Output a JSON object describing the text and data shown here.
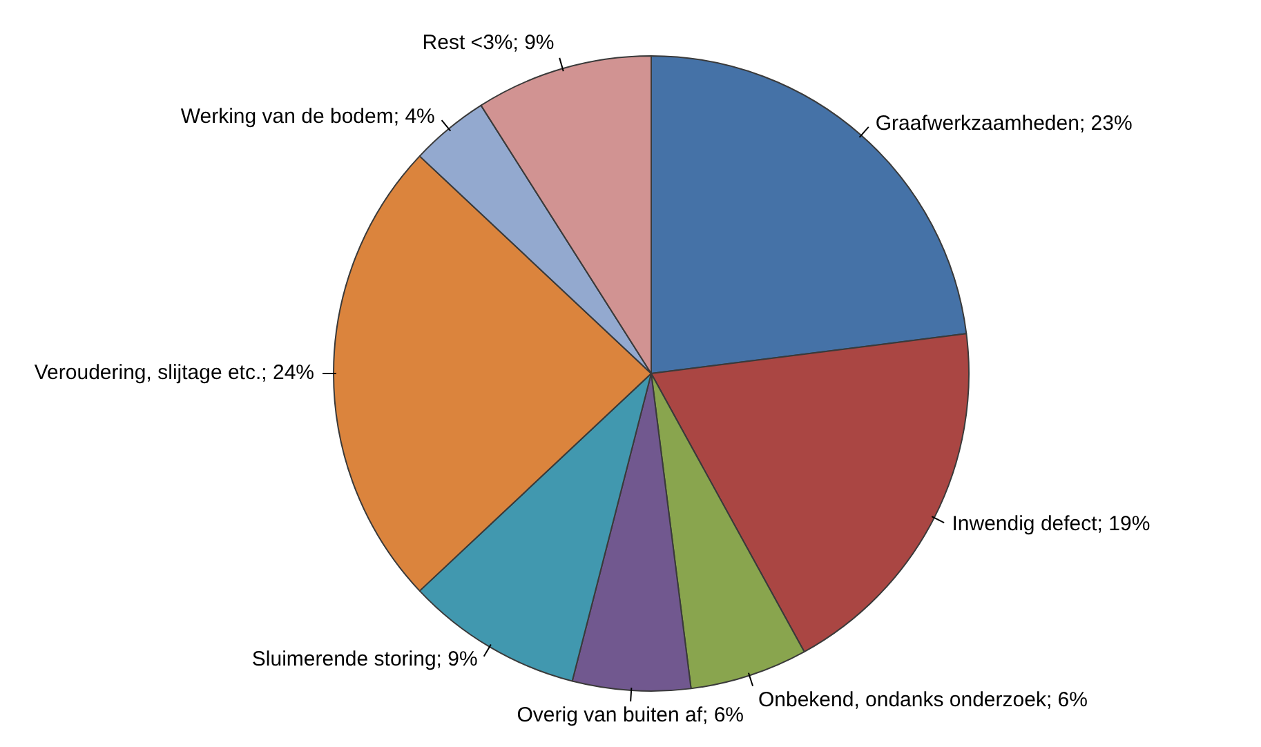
{
  "chart_data": {
    "type": "pie",
    "categories": [
      "Graafwerkzaamheden",
      "Inwendig defect",
      "Onbekend, ondanks onderzoek",
      "Overig van buiten af",
      "Sluimerende storing",
      "Veroudering, slijtage etc.",
      "Werking van de bodem",
      "Rest <3%"
    ],
    "values": [
      23,
      19,
      6,
      6,
      9,
      24,
      4,
      9
    ],
    "value_labels": [
      "23%",
      "19%",
      "6%",
      "6%",
      "9%",
      "24%",
      "4%",
      "9%"
    ],
    "colors": [
      "#4572a7",
      "#aa4643",
      "#89a54e",
      "#71588f",
      "#4198af",
      "#db843d",
      "#93a9cf",
      "#d19392"
    ],
    "legend": false
  }
}
